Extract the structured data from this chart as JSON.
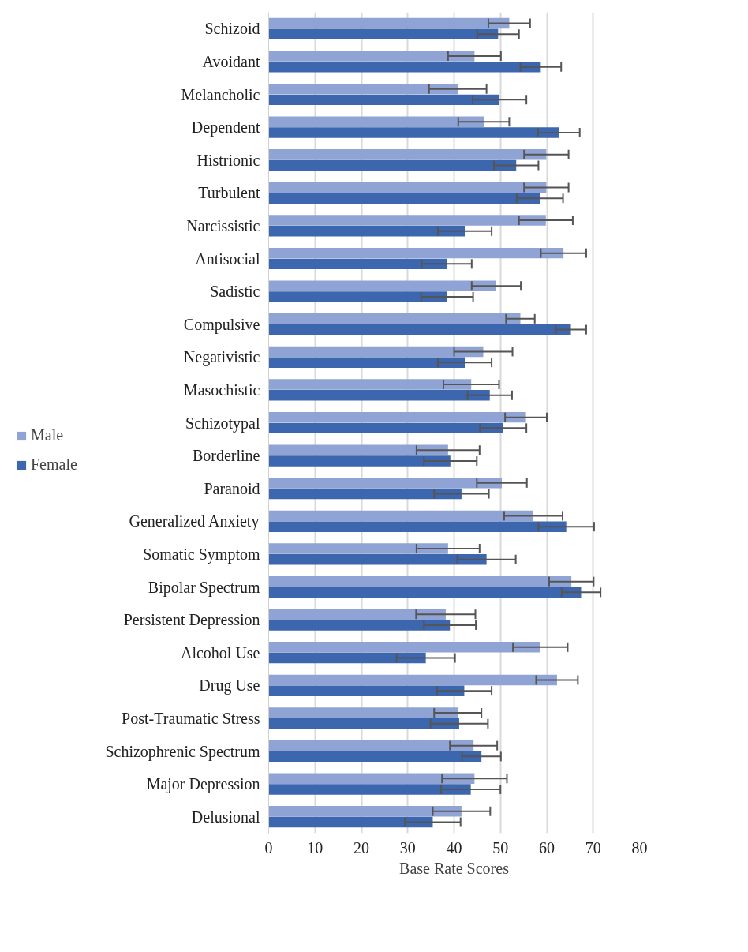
{
  "chart_data": {
    "type": "bar",
    "orientation": "horizontal",
    "xlabel": "Base Rate Scores",
    "categories": [
      "Schizoid",
      "Avoidant",
      "Melancholic",
      "Dependent",
      "Histrionic",
      "Turbulent",
      "Narcissistic",
      "Antisocial",
      "Sadistic",
      "Compulsive",
      "Negativistic",
      "Masochistic",
      "Schizotypal",
      "Borderline",
      "Paranoid",
      "Generalized Anxiety",
      "Somatic Symptom",
      "Bipolar Spectrum",
      "Persistent Depression",
      "Alcohol Use",
      "Drug Use",
      "Post-Traumatic Stress",
      "Schizophrenic Spectrum",
      "Major Depression",
      "Delusional"
    ],
    "series": [
      {
        "name": "Male",
        "color": "#8fa4d4",
        "values": [
          51.9,
          44.4,
          40.8,
          46.4,
          59.9,
          59.9,
          59.8,
          63.6,
          49.1,
          54.3,
          46.3,
          43.7,
          55.5,
          38.7,
          50.3,
          57.1,
          38.7,
          65.3,
          38.2,
          58.6,
          62.2,
          40.8,
          44.2,
          44.4,
          41.6
        ],
        "errors": [
          4.5,
          5.7,
          6.2,
          5.5,
          4.8,
          4.8,
          5.8,
          4.9,
          5.3,
          3.1,
          6.3,
          6.0,
          4.5,
          6.8,
          5.4,
          6.3,
          6.8,
          4.8,
          6.4,
          5.9,
          4.5,
          5.1,
          5.1,
          7.0,
          6.2
        ]
      },
      {
        "name": "Female",
        "color": "#3c66ae",
        "values": [
          49.5,
          58.7,
          49.8,
          62.6,
          53.4,
          58.5,
          42.3,
          38.4,
          38.5,
          65.2,
          42.3,
          47.7,
          50.6,
          39.2,
          41.6,
          64.2,
          47.0,
          67.4,
          39.1,
          33.9,
          42.2,
          41.1,
          45.9,
          43.6,
          35.4
        ],
        "errors": [
          4.5,
          4.4,
          5.8,
          4.5,
          4.8,
          5.0,
          5.8,
          5.4,
          5.6,
          3.3,
          5.8,
          4.8,
          5.0,
          5.7,
          5.9,
          6.0,
          6.3,
          4.2,
          5.6,
          6.3,
          5.9,
          6.2,
          4.2,
          6.4,
          6.0
        ]
      }
    ],
    "xlim": [
      0,
      80
    ],
    "xticks": [
      0,
      10,
      20,
      30,
      40,
      50,
      60,
      70,
      80
    ],
    "grid": "x",
    "legend": "left"
  }
}
